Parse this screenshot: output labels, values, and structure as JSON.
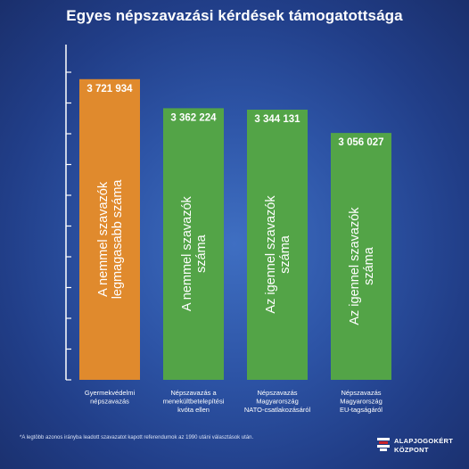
{
  "chart_data": {
    "type": "bar",
    "title": "Egyes népszavazási kérdések támogatottsága",
    "categories": [
      [
        "Gyermekvédelmi",
        "népszavazás"
      ],
      [
        "Népszavazás a",
        "menekültbetelepítési",
        "kvóta ellen"
      ],
      [
        "Népszavazás",
        "Magyarország",
        "NATO-csatlakozásáról"
      ],
      [
        "Népszavazás",
        "Magyarország",
        "EU-tagságáról"
      ]
    ],
    "values": [
      3721934,
      3362224,
      3344131,
      3056027
    ],
    "value_labels": [
      "3 721 934",
      "3 362 224",
      "3 344 131",
      "3 056 027"
    ],
    "bar_labels": [
      [
        "A nemmel szavazók",
        "legmagasabb száma"
      ],
      [
        "A nemmel szavazók",
        "száma"
      ],
      [
        "Az igennel szavazók",
        "száma"
      ],
      [
        "Az igennel szavazók",
        "száma"
      ]
    ],
    "bar_colors": [
      "#e08a2d",
      "#53a447",
      "#53a447",
      "#53a447"
    ],
    "xlabel": "",
    "ylabel": "",
    "ylim": [
      0,
      4150000
    ],
    "grid": false,
    "legend": "none"
  },
  "footnote": "*A legtöbb azonos irányba leadott szavazatot kapott referendumok az 1990 utáni választások után.",
  "logo": {
    "line1": "ALAPJOGOKÉRT",
    "line2": "KÖZPONT"
  }
}
